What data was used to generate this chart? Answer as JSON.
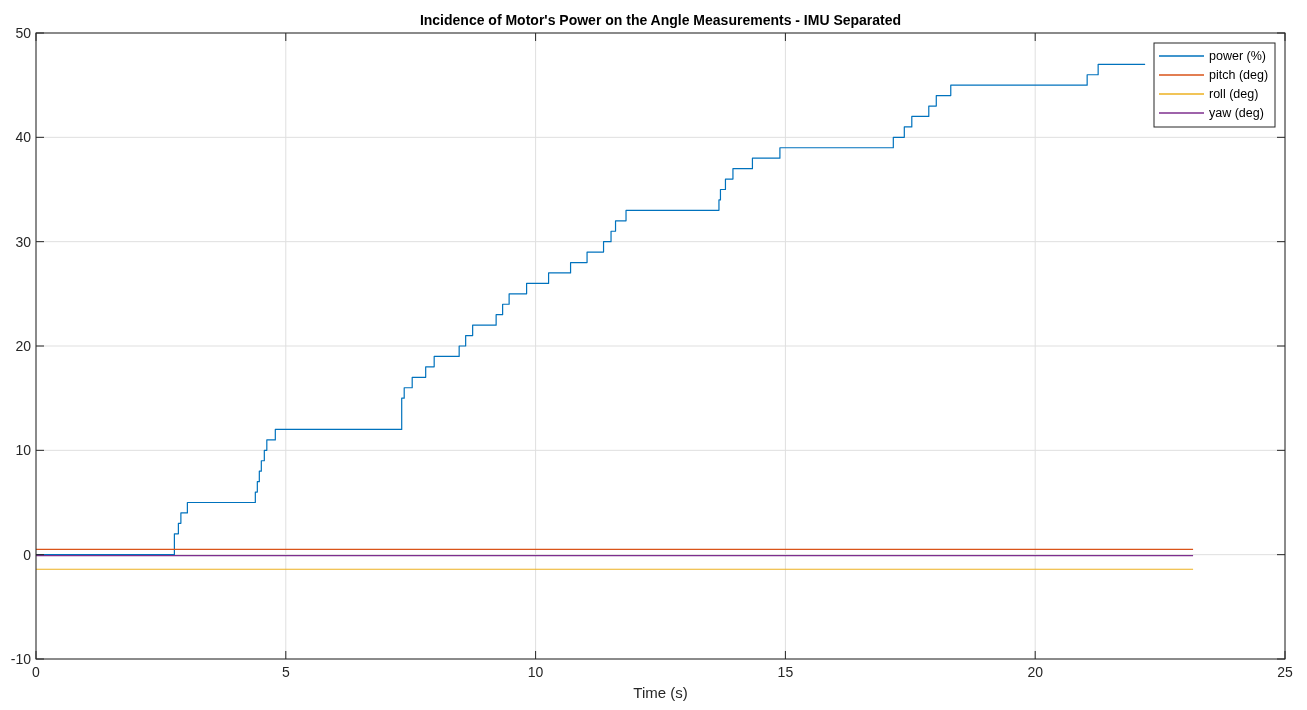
{
  "chart_data": {
    "type": "line",
    "title": "Incidence of Motor's Power on the Angle Measurements - IMU Separated",
    "xlabel": "Time (s)",
    "xlim": [
      0,
      25
    ],
    "xticks": [
      0,
      5,
      10,
      15,
      20,
      25
    ],
    "ylim": [
      -10,
      50
    ],
    "yticks": [
      -10,
      0,
      10,
      20,
      30,
      40,
      50
    ],
    "grid": true,
    "legend": "top right",
    "marker": "none",
    "line_style": "solid",
    "series": [
      {
        "name": "power (%)",
        "type": "step",
        "color": "#0072bd",
        "x": [
          0,
          2.77,
          2.85,
          2.9,
          3.03,
          4.39,
          4.43,
          4.47,
          4.51,
          4.57,
          4.62,
          4.79,
          7.32,
          7.37,
          7.53,
          7.8,
          7.97,
          8.47,
          8.6,
          8.74,
          9.21,
          9.34,
          9.47,
          9.82,
          10.26,
          10.7,
          11.03,
          11.36,
          11.51,
          11.6,
          11.81,
          13.67,
          13.7,
          13.8,
          13.95,
          14.34,
          14.89,
          17.16,
          17.38,
          17.53,
          17.87,
          18.02,
          18.31,
          21.04,
          21.26,
          22.2
        ],
        "values": [
          0,
          2,
          3,
          4,
          5,
          6,
          7,
          8,
          9,
          10,
          11,
          12,
          15,
          16,
          17,
          18,
          19,
          20,
          21,
          22,
          23,
          24,
          25,
          26,
          27,
          28,
          29,
          30,
          31,
          32,
          33,
          34,
          35,
          36,
          37,
          38,
          39,
          40,
          41,
          42,
          43,
          44,
          45,
          46,
          47,
          47
        ]
      },
      {
        "name": "pitch (deg)",
        "color": "#d95319",
        "x": [
          0,
          23.16
        ],
        "values": [
          0.5,
          0.5
        ]
      },
      {
        "name": "roll (deg)",
        "color": "#edb120",
        "x": [
          0,
          23.16
        ],
        "values": [
          -1.4,
          -1.4
        ]
      },
      {
        "name": "yaw (deg)",
        "color": "#7e2f8e",
        "x": [
          0,
          23.16
        ],
        "values": [
          -0.1,
          -0.1
        ]
      }
    ]
  }
}
